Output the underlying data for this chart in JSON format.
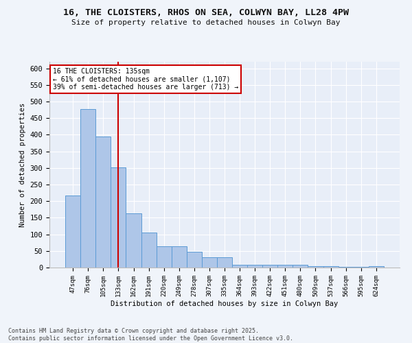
{
  "title_line1": "16, THE CLOISTERS, RHOS ON SEA, COLWYN BAY, LL28 4PW",
  "title_line2": "Size of property relative to detached houses in Colwyn Bay",
  "xlabel": "Distribution of detached houses by size in Colwyn Bay",
  "ylabel": "Number of detached properties",
  "categories": [
    "47sqm",
    "76sqm",
    "105sqm",
    "133sqm",
    "162sqm",
    "191sqm",
    "220sqm",
    "249sqm",
    "278sqm",
    "307sqm",
    "335sqm",
    "364sqm",
    "393sqm",
    "422sqm",
    "451sqm",
    "480sqm",
    "509sqm",
    "537sqm",
    "566sqm",
    "595sqm",
    "624sqm"
  ],
  "values": [
    218,
    478,
    395,
    302,
    163,
    105,
    65,
    65,
    47,
    30,
    30,
    9,
    9,
    9,
    9,
    8,
    5,
    5,
    2,
    2,
    5
  ],
  "bar_color": "#aec6e8",
  "bar_edge_color": "#5b9bd5",
  "bg_color": "#e8eef8",
  "fig_bg_color": "#f0f4fa",
  "grid_color": "#ffffff",
  "vline_x": 3,
  "vline_color": "#cc0000",
  "annotation_text": "16 THE CLOISTERS: 135sqm\n← 61% of detached houses are smaller (1,107)\n39% of semi-detached houses are larger (713) →",
  "annotation_box_color": "#cc0000",
  "footnote": "Contains HM Land Registry data © Crown copyright and database right 2025.\nContains public sector information licensed under the Open Government Licence v3.0.",
  "ylim": [
    0,
    620
  ],
  "yticks": [
    0,
    50,
    100,
    150,
    200,
    250,
    300,
    350,
    400,
    450,
    500,
    550,
    600
  ]
}
